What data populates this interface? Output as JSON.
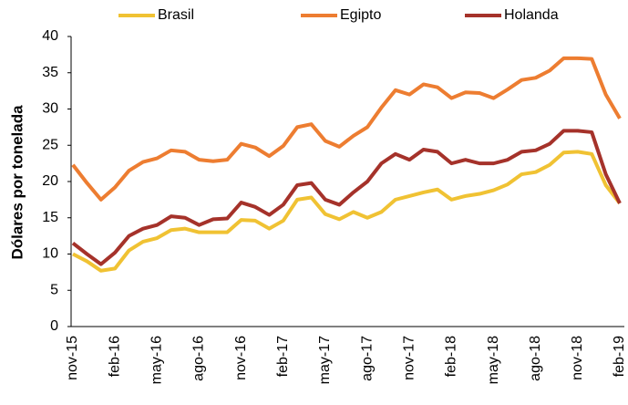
{
  "chart_data": {
    "type": "line",
    "y_label": "Dólares por tonelada",
    "categories": [
      "nov-15",
      null,
      null,
      "feb-16",
      null,
      null,
      "may-16",
      null,
      null,
      "ago-16",
      null,
      null,
      "nov-16",
      null,
      null,
      "feb-17",
      null,
      null,
      "may-17",
      null,
      null,
      "ago-17",
      null,
      null,
      "nov-17",
      null,
      null,
      "feb-18",
      null,
      null,
      "may-18",
      null,
      null,
      "ago-18",
      null,
      null,
      "nov-18",
      null,
      null,
      "feb-19"
    ],
    "series": [
      {
        "name": "Brasil",
        "color": "#f0c233",
        "values": [
          10.0,
          9.0,
          7.7,
          8.0,
          10.5,
          11.7,
          12.2,
          13.3,
          13.5,
          13.0,
          13.0,
          13.0,
          14.7,
          14.6,
          13.5,
          14.6,
          17.5,
          17.8,
          15.5,
          14.8,
          15.8,
          15.0,
          15.8,
          17.5,
          18.0,
          18.5,
          18.9,
          17.5,
          18.0,
          18.3,
          18.8,
          19.6,
          21.0,
          21.3,
          22.3,
          24.0,
          24.1,
          23.8,
          19.5,
          17.0
        ]
      },
      {
        "name": "Egipto",
        "color": "#ed7d31",
        "values": [
          22.3,
          19.8,
          17.5,
          19.2,
          21.5,
          22.7,
          23.2,
          24.3,
          24.1,
          23.0,
          22.8,
          23.0,
          25.2,
          24.7,
          23.5,
          24.9,
          27.5,
          27.9,
          25.6,
          24.8,
          26.3,
          27.5,
          30.2,
          32.6,
          32.0,
          33.4,
          33.0,
          31.5,
          32.3,
          32.2,
          31.5,
          32.7,
          34.0,
          34.3,
          35.3,
          37.0,
          37.0,
          36.9,
          32.0,
          28.7
        ]
      },
      {
        "name": "Holanda",
        "color": "#a5322a",
        "values": [
          11.5,
          10.0,
          8.6,
          10.2,
          12.5,
          13.5,
          14.0,
          15.2,
          15.0,
          14.0,
          14.8,
          14.9,
          17.1,
          16.5,
          15.4,
          16.8,
          19.5,
          19.8,
          17.5,
          16.8,
          18.5,
          20.0,
          22.5,
          23.8,
          23.0,
          24.4,
          24.1,
          22.5,
          23.0,
          22.5,
          22.5,
          23.0,
          24.1,
          24.3,
          25.2,
          27.0,
          27.0,
          26.8,
          21.0,
          17.0
        ]
      }
    ],
    "ylim": [
      0,
      40
    ],
    "yticks": [
      0,
      5,
      10,
      15,
      20,
      25,
      30,
      35,
      40
    ],
    "grid": false
  }
}
